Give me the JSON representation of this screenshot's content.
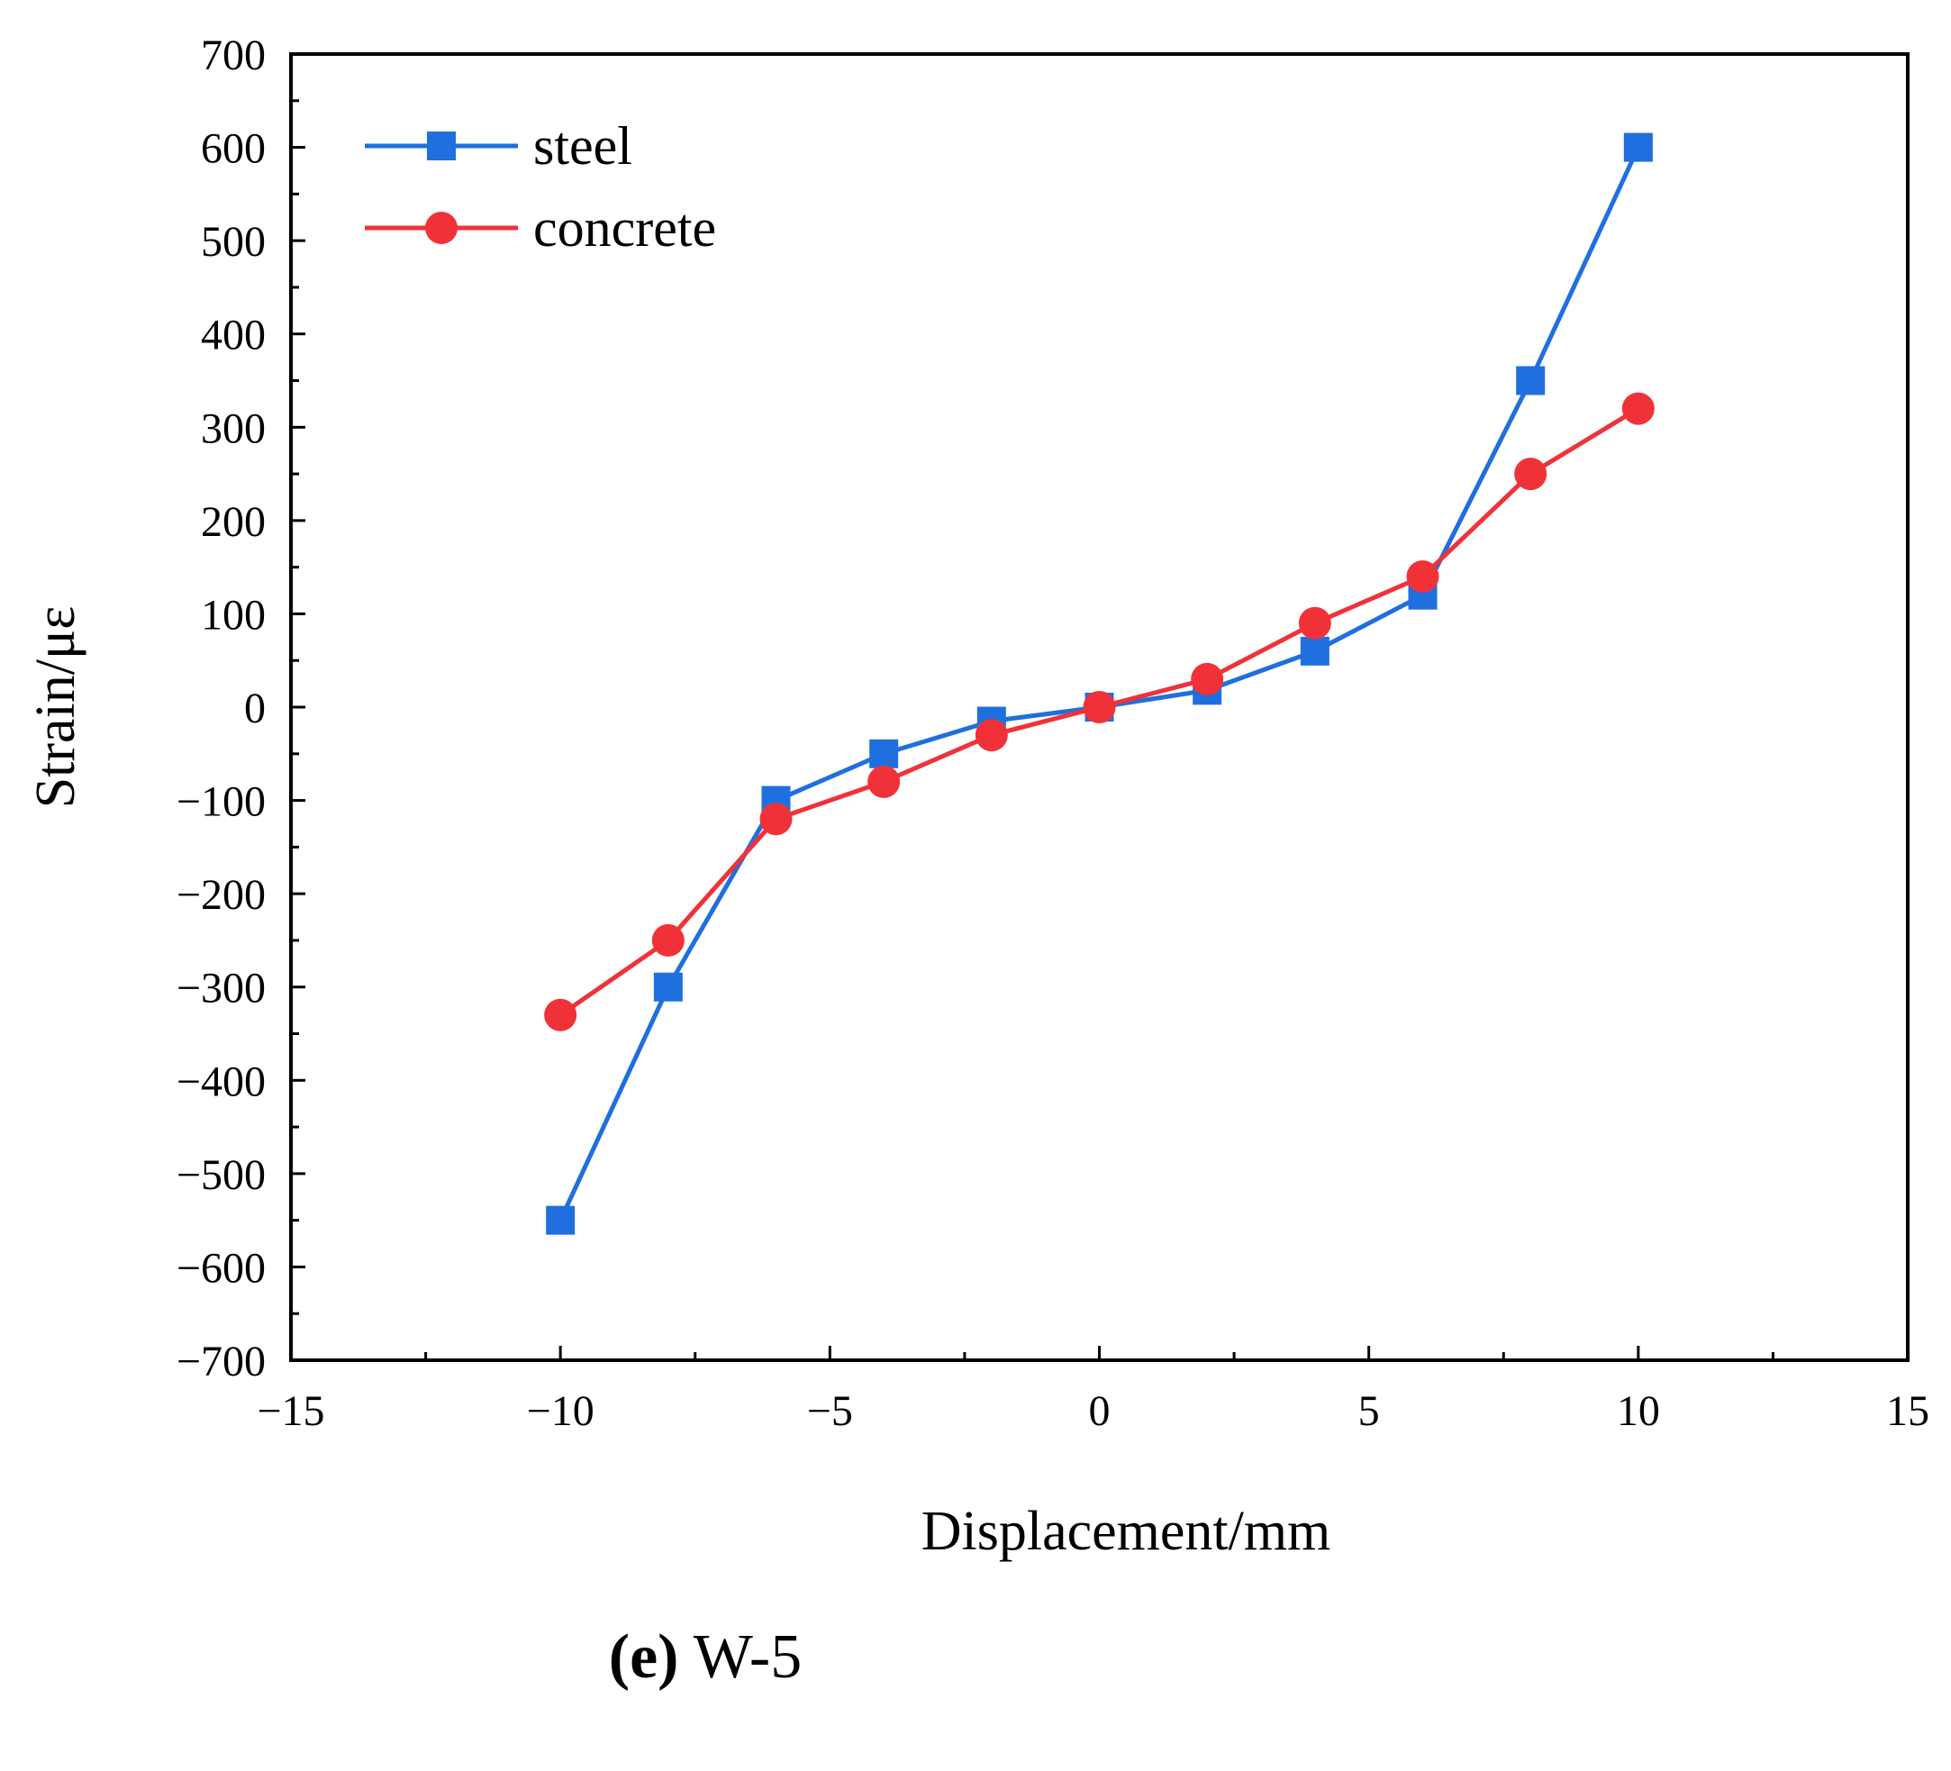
{
  "chart_data": {
    "type": "line",
    "title": "",
    "xlabel": "Displacement/mm",
    "ylabel": "Strain/με",
    "xlim": [
      -15,
      15
    ],
    "ylim": [
      -700,
      700
    ],
    "xticks": [
      -15,
      -10,
      -5,
      0,
      5,
      10,
      15
    ],
    "xtick_labels": [
      "−15",
      "−10",
      "−5",
      "0",
      "5",
      "10",
      "15"
    ],
    "yticks": [
      700,
      600,
      500,
      400,
      300,
      200,
      100,
      0,
      -100,
      -200,
      -300,
      -400,
      -500,
      -600,
      -700
    ],
    "ytick_labels": [
      "700",
      "600",
      "500",
      "400",
      "300",
      "200",
      "100",
      "0",
      "−100",
      "−200",
      "−300",
      "−400",
      "−500",
      "−600",
      "−700"
    ],
    "legend_position": "top-left",
    "grid": false,
    "x": [
      -10,
      -8,
      -6,
      -4,
      -2,
      0,
      2,
      4,
      6,
      8,
      10
    ],
    "series": [
      {
        "name": "steel",
        "marker": "square",
        "color": "#1f6fdf",
        "values": [
          -550,
          -300,
          -100,
          -50,
          -15,
          0,
          18,
          60,
          120,
          350,
          600
        ]
      },
      {
        "name": "concrete",
        "marker": "circle",
        "color": "#f03238",
        "values": [
          -330,
          -250,
          -120,
          -80,
          -30,
          0,
          30,
          90,
          140,
          250,
          320
        ]
      }
    ]
  },
  "caption": {
    "label": "(e)",
    "text": " W-5"
  }
}
